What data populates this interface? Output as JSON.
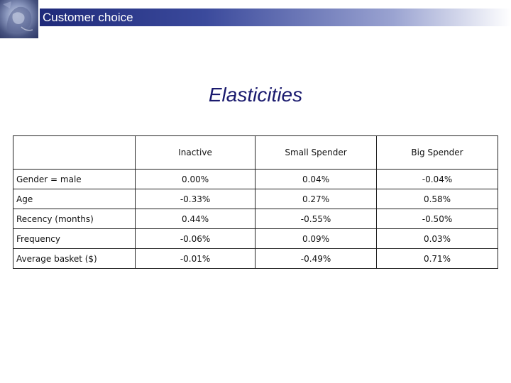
{
  "header": {
    "title": "Customer choice"
  },
  "slide": {
    "title": "Elasticities"
  },
  "table": {
    "columns": [
      "",
      "Inactive",
      "Small Spender",
      "Big Spender"
    ],
    "rows": [
      {
        "label": "Gender = male",
        "values": [
          "0.00%",
          "0.04%",
          "-0.04%"
        ]
      },
      {
        "label": "Age",
        "values": [
          "-0.33%",
          "0.27%",
          "0.58%"
        ]
      },
      {
        "label": "Recency (months)",
        "values": [
          "0.44%",
          "-0.55%",
          "-0.50%"
        ]
      },
      {
        "label": "Frequency",
        "values": [
          "-0.06%",
          "0.09%",
          "0.03%"
        ]
      },
      {
        "label": "Average basket ($)",
        "values": [
          "-0.01%",
          "-0.49%",
          "0.71%"
        ]
      }
    ]
  },
  "colors": {
    "header_bar": "#1f2a7a",
    "title_text": "#1a1a6e"
  },
  "icons": {
    "logo": "lion-statue-logo"
  }
}
